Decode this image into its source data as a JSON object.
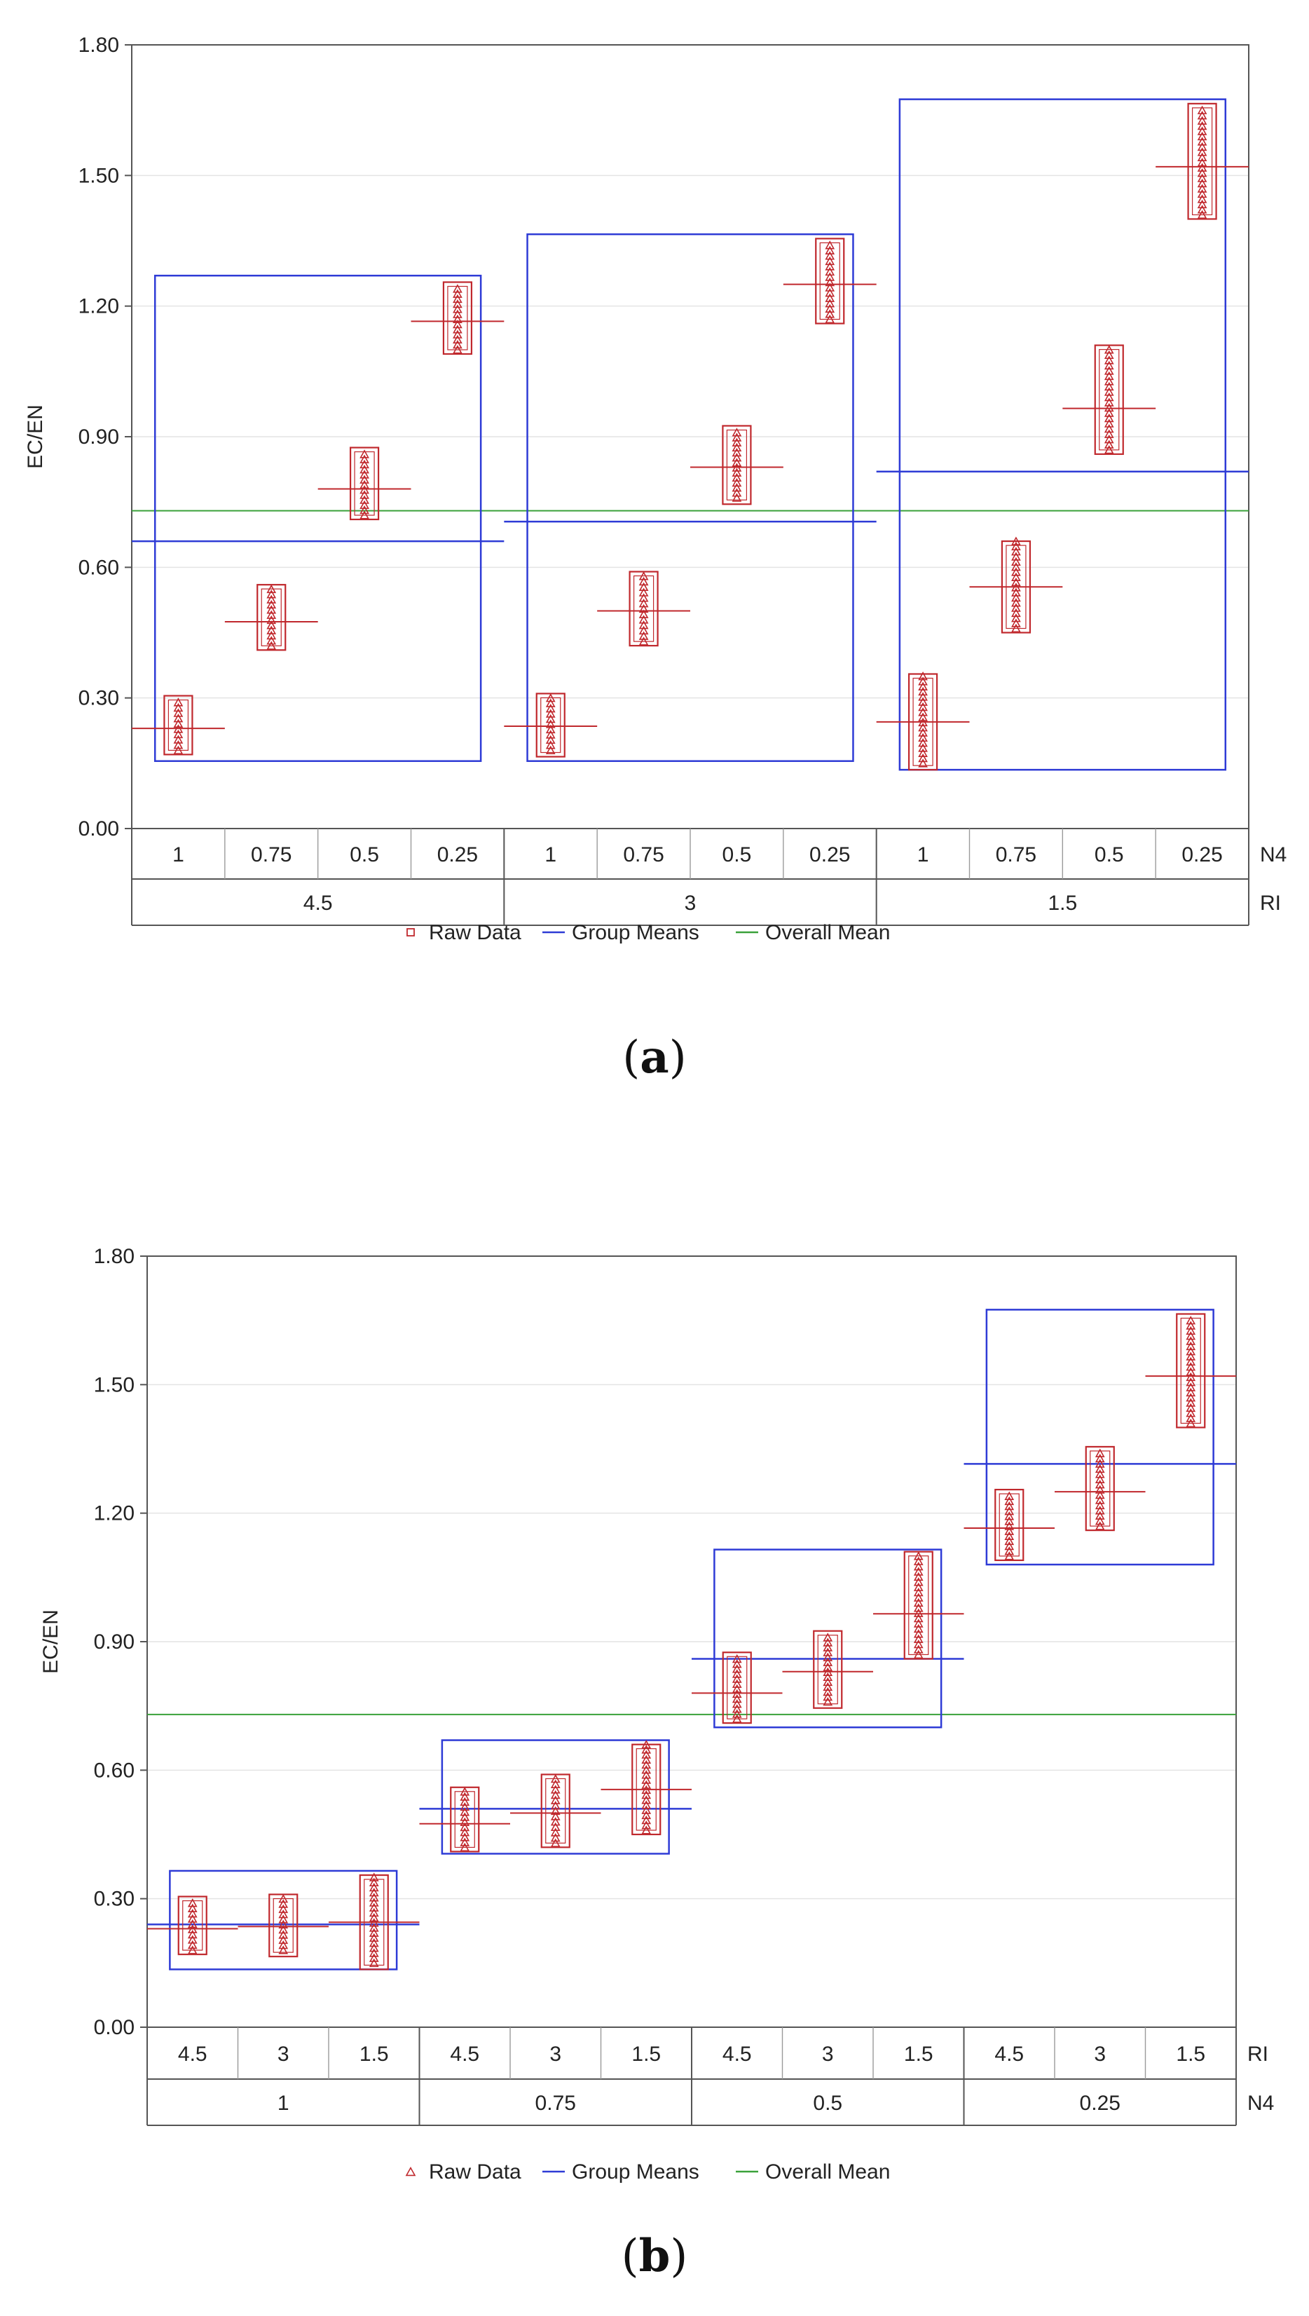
{
  "colors": {
    "raw": "#c0282d",
    "group_mean": "#2e3bd6",
    "overall_mean": "#3aa13a",
    "frame": "#555555",
    "grid": "#e4e4e4"
  },
  "chart_data": [
    {
      "type": "box",
      "panel_label_prefix": "(",
      "panel_letter": "a",
      "panel_label_suffix": ")",
      "ylabel": "EC/EN",
      "ylim": [
        0,
        1.8
      ],
      "yticks": [
        "0.00",
        "0.30",
        "0.60",
        "0.90",
        "1.20",
        "1.50",
        "1.80"
      ],
      "ytick_values": [
        0,
        0.3,
        0.6,
        0.9,
        1.2,
        1.5,
        1.8
      ],
      "inner_factor": "N4",
      "outer_factor": "RI",
      "inner_labels": [
        "1",
        "0.75",
        "0.5",
        "0.25",
        "1",
        "0.75",
        "0.5",
        "0.25",
        "1",
        "0.75",
        "0.5",
        "0.25"
      ],
      "outer_labels": [
        "4.5",
        "3",
        "1.5"
      ],
      "cells": [
        {
          "min": 0.18,
          "max": 0.29,
          "box_low": 0.17,
          "box_high": 0.305,
          "mean": 0.23
        },
        {
          "min": 0.42,
          "max": 0.55,
          "box_low": 0.41,
          "box_high": 0.56,
          "mean": 0.475
        },
        {
          "min": 0.72,
          "max": 0.86,
          "box_low": 0.71,
          "box_high": 0.875,
          "mean": 0.78
        },
        {
          "min": 1.1,
          "max": 1.24,
          "box_low": 1.09,
          "box_high": 1.255,
          "mean": 1.165
        },
        {
          "min": 0.18,
          "max": 0.3,
          "box_low": 0.165,
          "box_high": 0.31,
          "mean": 0.235
        },
        {
          "min": 0.43,
          "max": 0.58,
          "box_low": 0.42,
          "box_high": 0.59,
          "mean": 0.5
        },
        {
          "min": 0.76,
          "max": 0.91,
          "box_low": 0.745,
          "box_high": 0.925,
          "mean": 0.83
        },
        {
          "min": 1.17,
          "max": 1.34,
          "box_low": 1.16,
          "box_high": 1.355,
          "mean": 1.25
        },
        {
          "min": 0.15,
          "max": 0.35,
          "box_low": 0.135,
          "box_high": 0.355,
          "mean": 0.245
        },
        {
          "min": 0.46,
          "max": 0.66,
          "box_low": 0.45,
          "box_high": 0.66,
          "mean": 0.555
        },
        {
          "min": 0.87,
          "max": 1.1,
          "box_low": 0.86,
          "box_high": 1.11,
          "mean": 0.965
        },
        {
          "min": 1.41,
          "max": 1.65,
          "box_low": 1.4,
          "box_high": 1.665,
          "mean": 1.52
        }
      ],
      "groups": [
        {
          "label": "4.5",
          "mean": 0.66,
          "box_low": 0.155,
          "box_high": 1.27
        },
        {
          "label": "3",
          "mean": 0.705,
          "box_low": 0.155,
          "box_high": 1.365
        },
        {
          "label": "1.5",
          "mean": 0.82,
          "box_low": 0.135,
          "box_high": 1.675
        }
      ],
      "overall_mean": 0.73,
      "legend": [
        {
          "key": "raw",
          "symbol": "square",
          "label": "Raw Data"
        },
        {
          "key": "group_mean",
          "symbol": "line",
          "label": "Group Means"
        },
        {
          "key": "overall_mean",
          "symbol": "line",
          "label": "Overall Mean"
        }
      ]
    },
    {
      "type": "box",
      "panel_label_prefix": "(",
      "panel_letter": "b",
      "panel_label_suffix": ")",
      "ylabel": "EC/EN",
      "ylim": [
        0,
        1.8
      ],
      "yticks": [
        "0.00",
        "0.30",
        "0.60",
        "0.90",
        "1.20",
        "1.50",
        "1.80"
      ],
      "ytick_values": [
        0,
        0.3,
        0.6,
        0.9,
        1.2,
        1.5,
        1.8
      ],
      "inner_factor": "RI",
      "outer_factor": "N4",
      "inner_labels": [
        "4.5",
        "3",
        "1.5",
        "4.5",
        "3",
        "1.5",
        "4.5",
        "3",
        "1.5",
        "4.5",
        "3",
        "1.5"
      ],
      "outer_labels": [
        "1",
        "0.75",
        "0.5",
        "0.25"
      ],
      "cells": [
        {
          "min": 0.18,
          "max": 0.29,
          "box_low": 0.17,
          "box_high": 0.305,
          "mean": 0.23
        },
        {
          "min": 0.18,
          "max": 0.3,
          "box_low": 0.165,
          "box_high": 0.31,
          "mean": 0.235
        },
        {
          "min": 0.15,
          "max": 0.35,
          "box_low": 0.135,
          "box_high": 0.355,
          "mean": 0.245
        },
        {
          "min": 0.42,
          "max": 0.55,
          "box_low": 0.41,
          "box_high": 0.56,
          "mean": 0.475
        },
        {
          "min": 0.43,
          "max": 0.58,
          "box_low": 0.42,
          "box_high": 0.59,
          "mean": 0.5
        },
        {
          "min": 0.46,
          "max": 0.66,
          "box_low": 0.45,
          "box_high": 0.66,
          "mean": 0.555
        },
        {
          "min": 0.72,
          "max": 0.86,
          "box_low": 0.71,
          "box_high": 0.875,
          "mean": 0.78
        },
        {
          "min": 0.76,
          "max": 0.91,
          "box_low": 0.745,
          "box_high": 0.925,
          "mean": 0.83
        },
        {
          "min": 0.87,
          "max": 1.1,
          "box_low": 0.86,
          "box_high": 1.11,
          "mean": 0.965
        },
        {
          "min": 1.1,
          "max": 1.24,
          "box_low": 1.09,
          "box_high": 1.255,
          "mean": 1.165
        },
        {
          "min": 1.17,
          "max": 1.34,
          "box_low": 1.16,
          "box_high": 1.355,
          "mean": 1.25
        },
        {
          "min": 1.41,
          "max": 1.65,
          "box_low": 1.4,
          "box_high": 1.665,
          "mean": 1.52
        }
      ],
      "groups": [
        {
          "label": "1",
          "mean": 0.24,
          "box_low": 0.135,
          "box_high": 0.365
        },
        {
          "label": "0.75",
          "mean": 0.51,
          "box_low": 0.405,
          "box_high": 0.67
        },
        {
          "label": "0.5",
          "mean": 0.86,
          "box_low": 0.7,
          "box_high": 1.115
        },
        {
          "label": "0.25",
          "mean": 1.315,
          "box_low": 1.08,
          "box_high": 1.675
        }
      ],
      "overall_mean": 0.73,
      "legend": [
        {
          "key": "raw",
          "symbol": "triangle",
          "label": "Raw Data"
        },
        {
          "key": "group_mean",
          "symbol": "line",
          "label": "Group Means"
        },
        {
          "key": "overall_mean",
          "symbol": "line",
          "label": "Overall Mean"
        }
      ]
    }
  ]
}
